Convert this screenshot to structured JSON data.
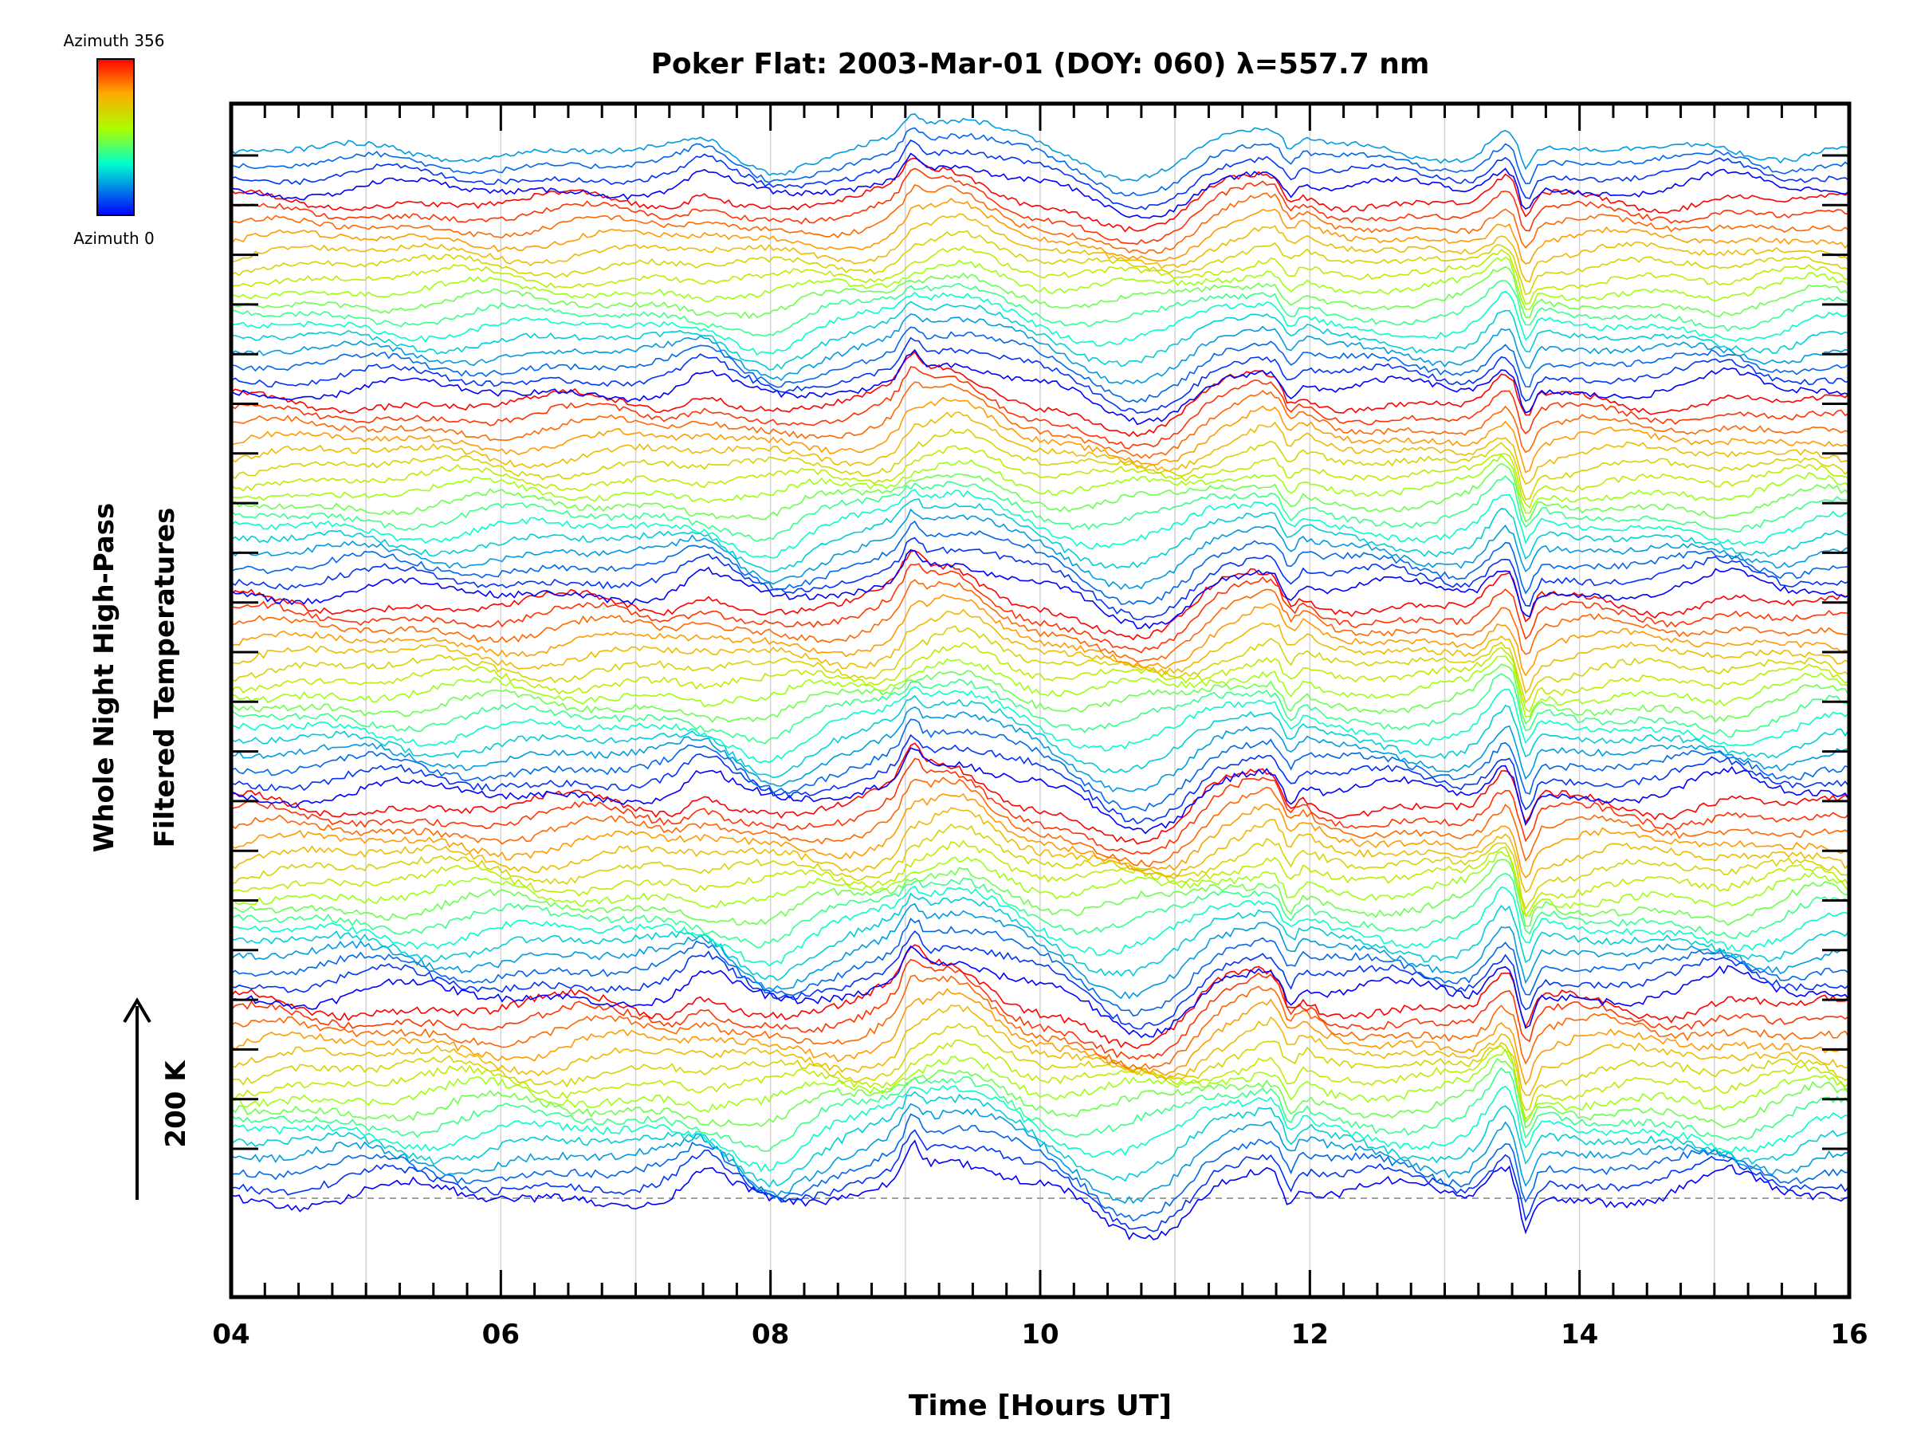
{
  "chart_data": {
    "type": "line",
    "title": "Poker Flat: 2003-Mar-01 (DOY: 060) λ=557.7 nm",
    "xlabel": "Time [Hours UT]",
    "ylabel": [
      "Whole Night High-Pass",
      "Filtered Temperatures"
    ],
    "xlim": [
      4,
      16
    ],
    "x_ticks": [
      "04",
      "06",
      "08",
      "10",
      "12",
      "14",
      "16"
    ],
    "x_tick_values": [
      4,
      6,
      8,
      10,
      12,
      14,
      16
    ],
    "x_minor_step": 0.25,
    "y_major_tick_count": 21,
    "grid": "vertical-hourly",
    "scale_bar": {
      "label": "200 K"
    },
    "colorbar": {
      "top_label": "Azimuth 356",
      "bottom_label": "Azimuth 0",
      "range": [
        0,
        356
      ],
      "placement": "top-left"
    },
    "stack": {
      "series_count": 84,
      "azimuth_cycle": 16,
      "baseline": "dashed"
    },
    "feature_times": [
      7.5,
      8.8,
      9.05,
      9.3,
      9.55,
      10.0,
      10.25,
      10.7,
      11.0,
      11.3,
      11.7,
      11.85,
      12.05,
      13.45,
      13.6,
      15.1,
      15.8
    ],
    "colors": {
      "axis": "#000000",
      "grid": "#d3d3d3",
      "baseline": "#a0a0a0"
    }
  }
}
